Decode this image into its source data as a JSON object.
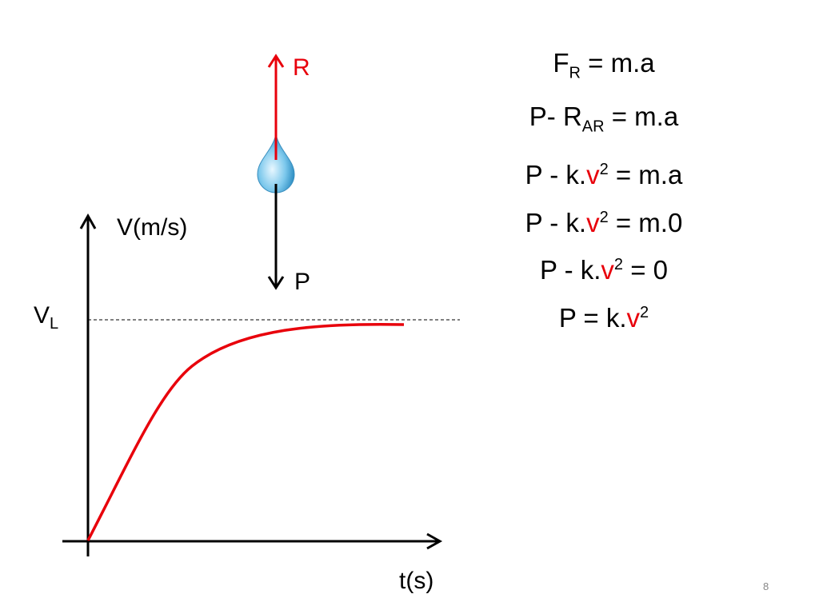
{
  "force_labels": {
    "up": "R",
    "down": "P"
  },
  "graph": {
    "y_axis_label": "V(m/s)",
    "limit_label": {
      "text": "V",
      "sub": "L"
    },
    "x_axis_label": "t(s)"
  },
  "equations": [
    [
      {
        "text": "F"
      },
      {
        "sub": "R"
      },
      {
        "text": " = m.a"
      }
    ],
    [
      {
        "text": "P- R"
      },
      {
        "sub": "AR"
      },
      {
        "text": " = m.a"
      }
    ],
    [
      {
        "text": "P - k."
      },
      {
        "text": "v",
        "color": "#e8000b"
      },
      {
        "sup": "2"
      },
      {
        "text": " = m.a"
      }
    ],
    [
      {
        "text": "P - k."
      },
      {
        "text": "v",
        "color": "#e8000b"
      },
      {
        "sup": "2"
      },
      {
        "text": " = m.0"
      }
    ],
    [
      {
        "text": "P - k."
      },
      {
        "text": "v",
        "color": "#e8000b"
      },
      {
        "sup": "2"
      },
      {
        "text": " = 0"
      }
    ],
    [
      {
        "text": "P = k."
      },
      {
        "text": "v",
        "color": "#e8000b"
      },
      {
        "sup": "2"
      }
    ]
  ],
  "page_number": "8"
}
